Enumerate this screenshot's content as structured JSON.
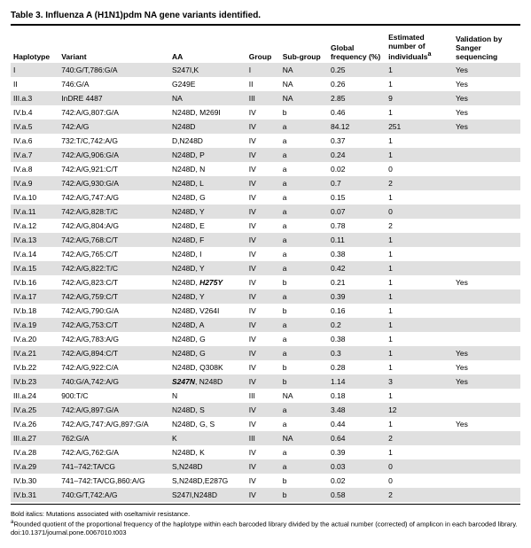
{
  "title": "Table 3. Influenza A (H1N1)pdm NA gene variants identified.",
  "columns": {
    "hap": "Haplotype",
    "var": "Variant",
    "aa": "AA",
    "grp": "Group",
    "sub": "Sub-group",
    "freq": "Global frequency (%)",
    "est": "Estimated number of individuals<sup>a</sup>",
    "val": "Validation by Sanger sequencing"
  },
  "rows": [
    {
      "hap": "I",
      "var": "740:G/T,786:G/A",
      "aa": "S247I,K",
      "grp": "I",
      "sub": "NA",
      "freq": "0.25",
      "est": "1",
      "val": "Yes",
      "shade": true
    },
    {
      "hap": "II",
      "var": "746:G/A",
      "aa": "G249E",
      "grp": "II",
      "sub": "NA",
      "freq": "0.26",
      "est": "1",
      "val": "Yes",
      "shade": false
    },
    {
      "hap": "III.a.3",
      "var": "InDRE 4487",
      "aa": "NA",
      "grp": "III",
      "sub": "NA",
      "freq": "2.85",
      "est": "9",
      "val": "Yes",
      "shade": true
    },
    {
      "hap": "IV.b.4",
      "var": "742:A/G,807:G/A",
      "aa": "N248D, M269I",
      "grp": "IV",
      "sub": "b",
      "freq": "0.46",
      "est": "1",
      "val": "Yes",
      "shade": false
    },
    {
      "hap": "IV.a.5",
      "var": "742:A/G",
      "aa": "N248D",
      "grp": "IV",
      "sub": "a",
      "freq": "84.12",
      "est": "251",
      "val": "Yes",
      "shade": true
    },
    {
      "hap": "IV.a.6",
      "var": "732:T/C,742:A/G",
      "aa": "D,N248D",
      "grp": "IV",
      "sub": "a",
      "freq": "0.37",
      "est": "1",
      "val": "",
      "shade": false
    },
    {
      "hap": "IV.a.7",
      "var": "742:A/G,906:G/A",
      "aa": "N248D, P",
      "grp": "IV",
      "sub": "a",
      "freq": "0.24",
      "est": "1",
      "val": "",
      "shade": true
    },
    {
      "hap": "IV.a.8",
      "var": "742:A/G,921:C/T",
      "aa": "N248D, N",
      "grp": "IV",
      "sub": "a",
      "freq": "0.02",
      "est": "0",
      "val": "",
      "shade": false
    },
    {
      "hap": "IV.a.9",
      "var": "742:A/G,930:G/A",
      "aa": "N248D, L",
      "grp": "IV",
      "sub": "a",
      "freq": "0.7",
      "est": "2",
      "val": "",
      "shade": true
    },
    {
      "hap": "IV.a.10",
      "var": "742:A/G,747:A/G",
      "aa": "N248D, G",
      "grp": "IV",
      "sub": "a",
      "freq": "0.15",
      "est": "1",
      "val": "",
      "shade": false
    },
    {
      "hap": "IV.a.11",
      "var": "742:A/G,828:T/C",
      "aa": "N248D, Y",
      "grp": "IV",
      "sub": "a",
      "freq": "0.07",
      "est": "0",
      "val": "",
      "shade": true
    },
    {
      "hap": "IV.a.12",
      "var": "742:A/G,804:A/G",
      "aa": "N248D, E",
      "grp": "IV",
      "sub": "a",
      "freq": "0.78",
      "est": "2",
      "val": "",
      "shade": false
    },
    {
      "hap": "IV.a.13",
      "var": "742:A/G,768:C/T",
      "aa": "N248D, F",
      "grp": "IV",
      "sub": "a",
      "freq": "0.11",
      "est": "1",
      "val": "",
      "shade": true
    },
    {
      "hap": "IV.a.14",
      "var": "742:A/G,765:C/T",
      "aa": "N248D, I",
      "grp": "IV",
      "sub": "a",
      "freq": "0.38",
      "est": "1",
      "val": "",
      "shade": false
    },
    {
      "hap": "IV.a.15",
      "var": "742:A/G,822:T/C",
      "aa": "N248D, Y",
      "grp": "IV",
      "sub": "a",
      "freq": "0.42",
      "est": "1",
      "val": "",
      "shade": true
    },
    {
      "hap": "IV.b.16",
      "var": "742:A/G,823:C/T",
      "aa": "N248D, <span class=\"bi\">H275Y</span>",
      "grp": "IV",
      "sub": "b",
      "freq": "0.21",
      "est": "1",
      "val": "Yes",
      "shade": false
    },
    {
      "hap": "IV.a.17",
      "var": "742:A/G,759:C/T",
      "aa": "N248D, Y",
      "grp": "IV",
      "sub": "a",
      "freq": "0.39",
      "est": "1",
      "val": "",
      "shade": true
    },
    {
      "hap": "IV.b.18",
      "var": "742:A/G,790:G/A",
      "aa": "N248D, V264I",
      "grp": "IV",
      "sub": "b",
      "freq": "0.16",
      "est": "1",
      "val": "",
      "shade": false
    },
    {
      "hap": "IV.a.19",
      "var": "742:A/G,753:C/T",
      "aa": "N248D, A",
      "grp": "IV",
      "sub": "a",
      "freq": "0.2",
      "est": "1",
      "val": "",
      "shade": true
    },
    {
      "hap": "IV.a.20",
      "var": "742:A/G,783:A/G",
      "aa": "N248D, G",
      "grp": "IV",
      "sub": "a",
      "freq": "0.38",
      "est": "1",
      "val": "",
      "shade": false
    },
    {
      "hap": "IV.a.21",
      "var": "742:A/G,894:C/T",
      "aa": "N248D, G",
      "grp": "IV",
      "sub": "a",
      "freq": "0.3",
      "est": "1",
      "val": "Yes",
      "shade": true
    },
    {
      "hap": "IV.b.22",
      "var": "742:A/G,922:C/A",
      "aa": "N248D, Q308K",
      "grp": "IV",
      "sub": "b",
      "freq": "0.28",
      "est": "1",
      "val": "Yes",
      "shade": false
    },
    {
      "hap": "IV.b.23",
      "var": "740:G/A,742:A/G",
      "aa": "<span class=\"bi\">S247N</span>, N248D",
      "grp": "IV",
      "sub": "b",
      "freq": "1.14",
      "est": "3",
      "val": "Yes",
      "shade": true
    },
    {
      "hap": "III.a.24",
      "var": "900:T/C",
      "aa": "N",
      "grp": "III",
      "sub": "NA",
      "freq": "0.18",
      "est": "1",
      "val": "",
      "shade": false
    },
    {
      "hap": "IV.a.25",
      "var": "742:A/G,897:G/A",
      "aa": "N248D, S",
      "grp": "IV",
      "sub": "a",
      "freq": "3.48",
      "est": "12",
      "val": "",
      "shade": true
    },
    {
      "hap": "IV.a.26",
      "var": "742:A/G,747:A/G,897:G/A",
      "aa": "N248D, G, S",
      "grp": "IV",
      "sub": "a",
      "freq": "0.44",
      "est": "1",
      "val": "Yes",
      "shade": false
    },
    {
      "hap": "III.a.27",
      "var": "762:G/A",
      "aa": "K",
      "grp": "III",
      "sub": "NA",
      "freq": "0.64",
      "est": "2",
      "val": "",
      "shade": true
    },
    {
      "hap": "IV.a.28",
      "var": "742:A/G,762:G/A",
      "aa": "N248D, K",
      "grp": "IV",
      "sub": "a",
      "freq": "0.39",
      "est": "1",
      "val": "",
      "shade": false
    },
    {
      "hap": "IV.a.29",
      "var": "741–742:TA/CG",
      "aa": "S,N248D",
      "grp": "IV",
      "sub": "a",
      "freq": "0.03",
      "est": "0",
      "val": "",
      "shade": true
    },
    {
      "hap": "IV.b.30",
      "var": "741–742:TA/CG,860:A/G",
      "aa": "S,N248D,E287G",
      "grp": "IV",
      "sub": "b",
      "freq": "0.02",
      "est": "0",
      "val": "",
      "shade": false
    },
    {
      "hap": "IV.b.31",
      "var": "740:G/T,742:A/G",
      "aa": "S247I,N248D",
      "grp": "IV",
      "sub": "b",
      "freq": "0.58",
      "est": "2",
      "val": "",
      "shade": true
    }
  ],
  "footnotes": {
    "note1": "Bold italics: Mutations associated with oseltamivir resistance.",
    "note2": "<sup>a</sup>Rounded quotient of the proportional frequency of the haplotype within each barcoded library divided by the actual number (corrected) of amplicon in each barcoded library.",
    "doi": "doi:10.1371/journal.pone.0067010.t003"
  }
}
